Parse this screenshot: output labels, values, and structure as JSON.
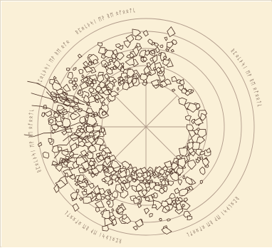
{
  "figure": {
    "background_color": "#faf0d7",
    "ink_color": "#4a2f24",
    "grid_color": "#b09a8a",
    "ring_count": 5,
    "spoke_count": 8
  },
  "rim_glyph_groups": [
    {
      "glyphs": "ᚱᛈᛟᚳᚦᛋᛁ ᛖᚹ ᚱᛖ ᛟᚩᛟᛟᛏᚳ"
    },
    {
      "glyphs": "ᚱᛈᛟᚳᚦᛋᛁ ᛖᚹ ᚱᛖ ᛟᚩᛟᛟᛏᚳ"
    },
    {
      "glyphs": "ᚱᛈᛟᚳᚦᛋᛁ ᛖᚹ ᚱᛖ ᛟᚩᛟᛟᛏᚳ"
    },
    {
      "glyphs": "ᚱᛈᛟᚳᚦᛋᛁ ᛖᚹ ᚱᛖ ᛟᚩᛟᛟᛏᚳ"
    },
    {
      "glyphs": "ᚱᛈᛟᚳᚦᛋᛁ ᛖᚹ ᚱᛖ ᛟᚩᛟᛟᛏᚳ"
    },
    {
      "glyphs": "ᚱᛈᛟᚳᚦᛋᛁ ᛖᚹ ᚱᛖ ᛟᚩᛟᛟᛏᚳ"
    }
  ]
}
